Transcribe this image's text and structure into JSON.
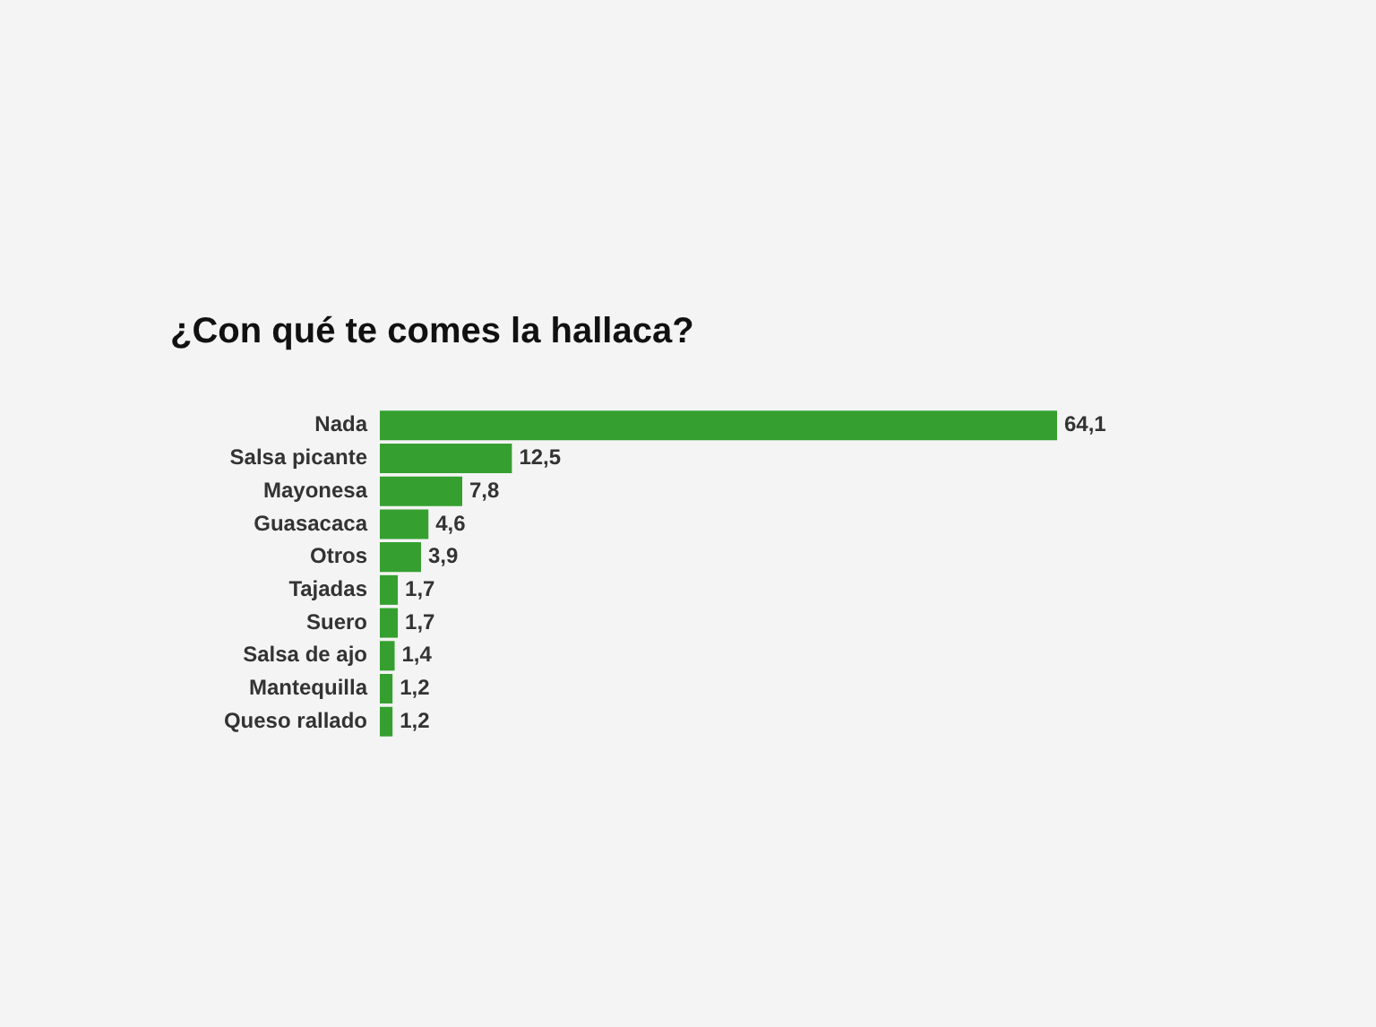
{
  "chart_data": {
    "type": "bar",
    "orientation": "horizontal",
    "title": "¿Con qué te comes la hallaca?",
    "categories": [
      "Nada",
      "Salsa picante",
      "Mayonesa",
      "Guasacaca",
      "Otros",
      "Tajadas",
      "Suero",
      "Salsa de ajo",
      "Mantequilla",
      "Queso rallado"
    ],
    "values": [
      64.1,
      12.5,
      7.8,
      4.6,
      3.9,
      1.7,
      1.7,
      1.4,
      1.2,
      1.2
    ],
    "value_labels": [
      "64,1",
      "12,5",
      "7,8",
      "4,6",
      "3,9",
      "1,7",
      "1,7",
      "1,4",
      "1,2",
      "1,2"
    ],
    "color": "#35a030",
    "tick_labels": "y"
  }
}
